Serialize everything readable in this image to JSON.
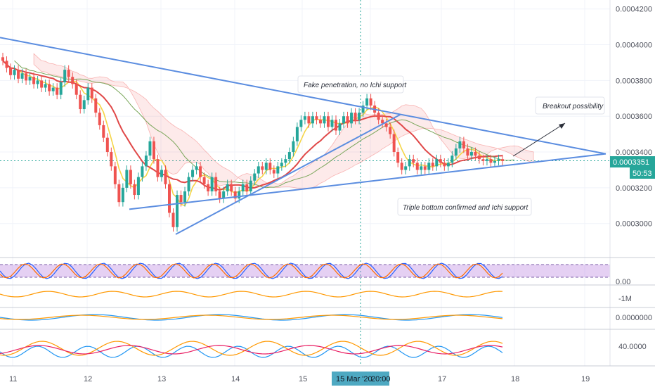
{
  "chart_data": {
    "type": "candlestick",
    "x_ticks": [
      "11",
      "12",
      "13",
      "14",
      "15",
      "16",
      "17",
      "18",
      "19"
    ],
    "crosshair_date": "15 Mar '20",
    "crosshair_time": "20:00",
    "price_ticks": [
      "0.0004200",
      "0.0004000",
      "0.0003800",
      "0.0003600",
      "0.0003400",
      "0.0003200",
      "0.0003000"
    ],
    "price_range": [
      0.000281,
      0.000425
    ],
    "current_price": "0.0003351",
    "countdown": "50:53",
    "annotations": [
      "Fake penetration, no Ichi support",
      "Breakout possibility",
      "Triple bottom confirmed and Ichi support"
    ],
    "candles_close": [
      0.000391,
      0.000387,
      0.000383,
      0.000386,
      0.000381,
      0.000384,
      0.00038,
      0.000382,
      0.000378,
      0.00038,
      0.000376,
      0.000378,
      0.000374,
      0.000376,
      0.000372,
      0.000379,
      0.000386,
      0.000382,
      0.000378,
      0.000372,
      0.000364,
      0.000369,
      0.000376,
      0.00037,
      0.000362,
      0.000355,
      0.000348,
      0.00034,
      0.000332,
      0.000322,
      0.000312,
      0.00032,
      0.00033,
      0.000322,
      0.000316,
      0.000326,
      0.000332,
      0.000338,
      0.000346,
      0.000336,
      0.000326,
      0.00033,
      0.000322,
      0.000306,
      0.000298,
      0.000316,
      0.000312,
      0.000318,
      0.000326,
      0.00033,
      0.000332,
      0.000326,
      0.000322,
      0.000318,
      0.000326,
      0.000318,
      0.000314,
      0.000318,
      0.000322,
      0.000318,
      0.000314,
      0.000318,
      0.000322,
      0.000318,
      0.000324,
      0.000328,
      0.000332,
      0.00033,
      0.000334,
      0.00033,
      0.000328,
      0.000332,
      0.000334,
      0.000336,
      0.00034,
      0.000346,
      0.000354,
      0.000358,
      0.00036,
      0.000356,
      0.00036,
      0.000358,
      0.000356,
      0.00036,
      0.000354,
      0.000358,
      0.000352,
      0.000356,
      0.00036,
      0.000356,
      0.000362,
      0.000358,
      0.000362,
      0.000366,
      0.00037,
      0.000366,
      0.000362,
      0.000358,
      0.000356,
      0.000354,
      0.00035,
      0.00034,
      0.000334,
      0.00033,
      0.000332,
      0.000336,
      0.000334,
      0.00033,
      0.000332,
      0.00033,
      0.000334,
      0.000332,
      0.000336,
      0.000334,
      0.000332,
      0.000334,
      0.000338,
      0.000342,
      0.000346,
      0.000342,
      0.000338,
      0.00034,
      0.000338,
      0.000336,
      0.000335,
      0.000336,
      0.000334,
      0.000335,
      0.000336,
      0.000335
    ],
    "indicator_ticks": {
      "stoch_rsi": "0.00",
      "volume_osc": "-1M",
      "macd": "0.0000000",
      "dmi": "40.0000"
    }
  }
}
